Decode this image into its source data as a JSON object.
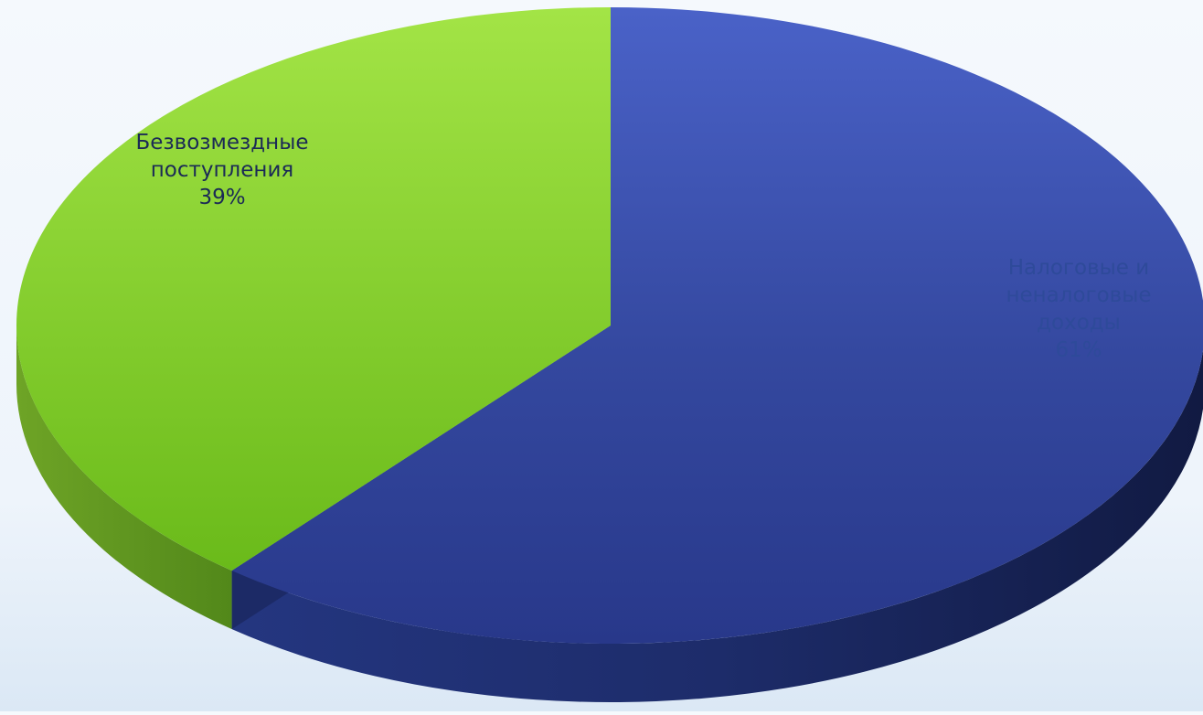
{
  "chart_data": {
    "type": "pie",
    "style": "3d",
    "title": "",
    "slices": [
      {
        "label": "Налоговые и неналоговые доходы",
        "label_lines": [
          "Налоговые и",
          "неналоговые",
          "доходы"
        ],
        "value": 61,
        "value_label": "61%",
        "color": "#2e44a6"
      },
      {
        "label": "Безвозмездные поступления",
        "label_lines": [
          "Безвозмездные",
          "поступления"
        ],
        "value": 39,
        "value_label": "39%",
        "color": "#7cc62a"
      }
    ],
    "label_colors": {
      "Налоговые и неналоговые доходы": "#2e4a9a",
      "Безвозмездные поступления": "#1b2a56"
    },
    "legend": "none"
  }
}
